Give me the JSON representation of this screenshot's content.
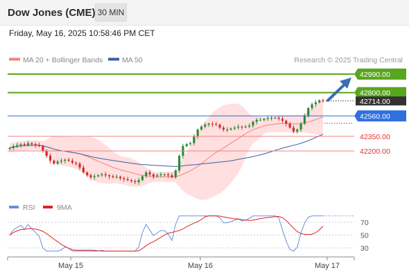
{
  "header": {
    "instrument": "Dow Jones (CME)",
    "timeframe": "30 MIN",
    "datetime": "Friday, May 16, 2025 10:58:46 PM CET"
  },
  "legend": {
    "ma20_bb": "MA 20 + Bollinger Bands",
    "ma50": "MA 50",
    "credit": "Research © 2025 Trading Central",
    "rsi": "RSI",
    "rsi_ma": "9MA"
  },
  "colors": {
    "resistance": "#5aa51e",
    "pivot": "#2f6fe0",
    "support": "#f08080",
    "support_text": "#e03030",
    "current": "#333333",
    "candle_up": "#2e8b3a",
    "candle_down": "#d62b2b",
    "bollinger_fill": "#ffd9d9",
    "ma20": "#f08080",
    "ma50": "#3a5fa8",
    "rsi": "#6a8fd8",
    "rsi_ma": "#e02020",
    "arrow": "#3a6fb0"
  },
  "chart_data": [
    {
      "type": "candlestick",
      "title": "Dow Jones (CME)",
      "x_ticks": [
        "May 15",
        "May 16",
        "May 17"
      ],
      "levels": [
        {
          "name": "resistance-2",
          "value": 42990,
          "label": "42990.00",
          "kind": "resistance"
        },
        {
          "name": "resistance-1",
          "value": 42800,
          "label": "42800.00",
          "kind": "resistance"
        },
        {
          "name": "current-price",
          "value": 42714,
          "label": "42714.00",
          "kind": "current"
        },
        {
          "name": "pivot",
          "value": 42560,
          "label": "42560.00",
          "kind": "pivot"
        },
        {
          "name": "support-1",
          "value": 42350,
          "label": "42350.00",
          "kind": "support"
        },
        {
          "name": "support-2",
          "value": 42200,
          "label": "42200.00",
          "kind": "support"
        }
      ],
      "closes": [
        42230,
        42250,
        42260,
        42270,
        42260,
        42280,
        42270,
        42260,
        42250,
        42200,
        42150,
        42100,
        42070,
        42090,
        42100,
        42110,
        42100,
        42080,
        42070,
        42030,
        41980,
        41950,
        41930,
        41940,
        41950,
        41960,
        41950,
        41940,
        41930,
        41935,
        41920,
        41910,
        41900,
        41890,
        41880,
        41900,
        41940,
        41980,
        41960,
        41940,
        41950,
        41960,
        41960,
        41950,
        41930,
        42000,
        42150,
        42250,
        42270,
        42280,
        42350,
        42420,
        42450,
        42470,
        42480,
        42475,
        42470,
        42440,
        42420,
        42420,
        42430,
        42440,
        42450,
        42445,
        42450,
        42460,
        42500,
        42520,
        42520,
        42530,
        42540,
        42540,
        42540,
        42530,
        42510,
        42480,
        42440,
        42400,
        42420,
        42480,
        42560,
        42640,
        42680,
        42700,
        42720,
        42714
      ],
      "indicators": [
        "MA 20 + Bollinger Bands",
        "MA 50"
      ]
    },
    {
      "type": "line",
      "title": "RSI",
      "series": [
        {
          "name": "RSI"
        },
        {
          "name": "9MA"
        }
      ],
      "y_ticks": [
        70,
        50,
        30
      ]
    }
  ]
}
